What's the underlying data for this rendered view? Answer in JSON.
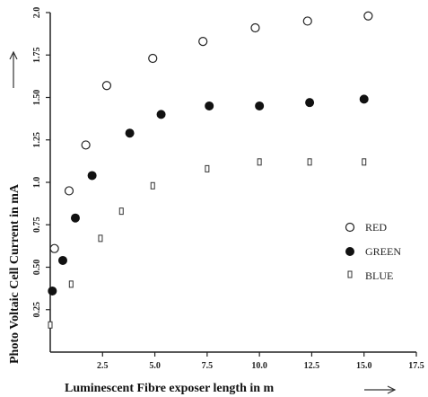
{
  "chart_data": {
    "type": "scatter",
    "xlabel": "Luminescent  Fibre exposer length  in  m",
    "ylabel": "Photo  Voltaic  Cell  Current  in  mA",
    "xlim": [
      0,
      17.5
    ],
    "ylim": [
      0,
      2.0
    ],
    "x_ticks": [
      "2.5",
      "5.0",
      "7.5",
      "10.0",
      "12.5",
      "15.0",
      "17.5"
    ],
    "y_ticks": [
      "0.25",
      "0.50",
      "0.75",
      "1.0",
      "1.25",
      "1.50",
      "1.75",
      "2.0"
    ],
    "grid": false,
    "legend_position": "right",
    "series": [
      {
        "name": "RED",
        "marker": "open-circle",
        "points": [
          {
            "x": 0.2,
            "y": 0.61
          },
          {
            "x": 0.9,
            "y": 0.95
          },
          {
            "x": 1.7,
            "y": 1.22
          },
          {
            "x": 2.7,
            "y": 1.57
          },
          {
            "x": 4.9,
            "y": 1.73
          },
          {
            "x": 7.3,
            "y": 1.83
          },
          {
            "x": 9.8,
            "y": 1.91
          },
          {
            "x": 12.3,
            "y": 1.95
          },
          {
            "x": 15.2,
            "y": 1.98
          }
        ]
      },
      {
        "name": "GREEN",
        "marker": "filled-circle",
        "points": [
          {
            "x": 0.1,
            "y": 0.36
          },
          {
            "x": 0.6,
            "y": 0.54
          },
          {
            "x": 1.2,
            "y": 0.79
          },
          {
            "x": 2.0,
            "y": 1.04
          },
          {
            "x": 3.8,
            "y": 1.29
          },
          {
            "x": 5.3,
            "y": 1.4
          },
          {
            "x": 7.6,
            "y": 1.45
          },
          {
            "x": 10.0,
            "y": 1.45
          },
          {
            "x": 12.4,
            "y": 1.47
          },
          {
            "x": 15.0,
            "y": 1.49
          }
        ]
      },
      {
        "name": "BLUE",
        "marker": "open-rect",
        "points": [
          {
            "x": 0.0,
            "y": 0.16
          },
          {
            "x": 1.0,
            "y": 0.4
          },
          {
            "x": 2.4,
            "y": 0.67
          },
          {
            "x": 3.4,
            "y": 0.83
          },
          {
            "x": 4.9,
            "y": 0.98
          },
          {
            "x": 7.5,
            "y": 1.08
          },
          {
            "x": 10.0,
            "y": 1.12
          },
          {
            "x": 12.4,
            "y": 1.12
          },
          {
            "x": 15.0,
            "y": 1.12
          }
        ]
      }
    ]
  }
}
